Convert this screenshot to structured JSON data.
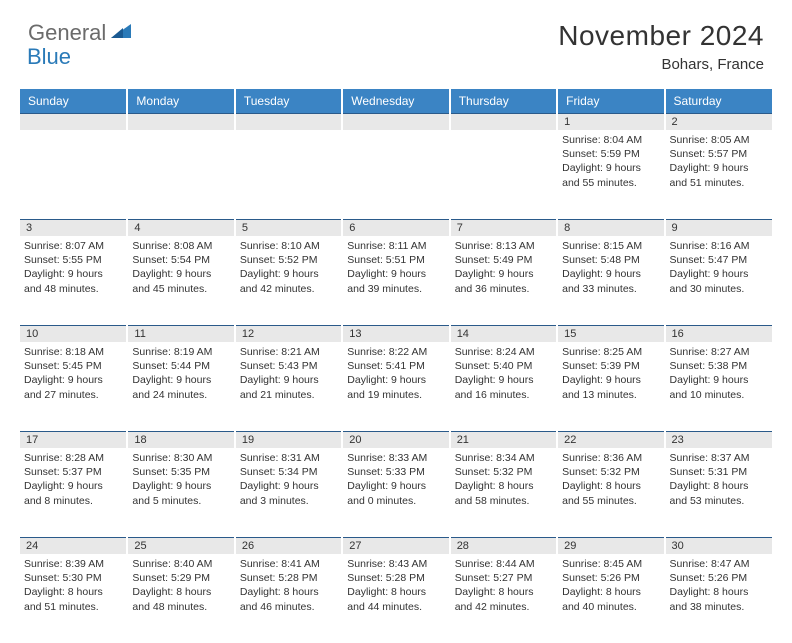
{
  "logo": {
    "text1": "General",
    "text2": "Blue"
  },
  "title": "November 2024",
  "subtitle": "Bohars, France",
  "colors": {
    "header_bg": "#3b84c4",
    "header_text": "#ffffff",
    "daynum_bg": "#e8e8e8",
    "border_top": "#2a5a8a",
    "text": "#333333",
    "logo_gray": "#6b6b6b",
    "logo_blue": "#2a7ab8"
  },
  "days_of_week": [
    "Sunday",
    "Monday",
    "Tuesday",
    "Wednesday",
    "Thursday",
    "Friday",
    "Saturday"
  ],
  "weeks": [
    [
      null,
      null,
      null,
      null,
      null,
      {
        "n": "1",
        "sunrise": "8:04 AM",
        "sunset": "5:59 PM",
        "daylight": "9 hours and 55 minutes."
      },
      {
        "n": "2",
        "sunrise": "8:05 AM",
        "sunset": "5:57 PM",
        "daylight": "9 hours and 51 minutes."
      }
    ],
    [
      {
        "n": "3",
        "sunrise": "8:07 AM",
        "sunset": "5:55 PM",
        "daylight": "9 hours and 48 minutes."
      },
      {
        "n": "4",
        "sunrise": "8:08 AM",
        "sunset": "5:54 PM",
        "daylight": "9 hours and 45 minutes."
      },
      {
        "n": "5",
        "sunrise": "8:10 AM",
        "sunset": "5:52 PM",
        "daylight": "9 hours and 42 minutes."
      },
      {
        "n": "6",
        "sunrise": "8:11 AM",
        "sunset": "5:51 PM",
        "daylight": "9 hours and 39 minutes."
      },
      {
        "n": "7",
        "sunrise": "8:13 AM",
        "sunset": "5:49 PM",
        "daylight": "9 hours and 36 minutes."
      },
      {
        "n": "8",
        "sunrise": "8:15 AM",
        "sunset": "5:48 PM",
        "daylight": "9 hours and 33 minutes."
      },
      {
        "n": "9",
        "sunrise": "8:16 AM",
        "sunset": "5:47 PM",
        "daylight": "9 hours and 30 minutes."
      }
    ],
    [
      {
        "n": "10",
        "sunrise": "8:18 AM",
        "sunset": "5:45 PM",
        "daylight": "9 hours and 27 minutes."
      },
      {
        "n": "11",
        "sunrise": "8:19 AM",
        "sunset": "5:44 PM",
        "daylight": "9 hours and 24 minutes."
      },
      {
        "n": "12",
        "sunrise": "8:21 AM",
        "sunset": "5:43 PM",
        "daylight": "9 hours and 21 minutes."
      },
      {
        "n": "13",
        "sunrise": "8:22 AM",
        "sunset": "5:41 PM",
        "daylight": "9 hours and 19 minutes."
      },
      {
        "n": "14",
        "sunrise": "8:24 AM",
        "sunset": "5:40 PM",
        "daylight": "9 hours and 16 minutes."
      },
      {
        "n": "15",
        "sunrise": "8:25 AM",
        "sunset": "5:39 PM",
        "daylight": "9 hours and 13 minutes."
      },
      {
        "n": "16",
        "sunrise": "8:27 AM",
        "sunset": "5:38 PM",
        "daylight": "9 hours and 10 minutes."
      }
    ],
    [
      {
        "n": "17",
        "sunrise": "8:28 AM",
        "sunset": "5:37 PM",
        "daylight": "9 hours and 8 minutes."
      },
      {
        "n": "18",
        "sunrise": "8:30 AM",
        "sunset": "5:35 PM",
        "daylight": "9 hours and 5 minutes."
      },
      {
        "n": "19",
        "sunrise": "8:31 AM",
        "sunset": "5:34 PM",
        "daylight": "9 hours and 3 minutes."
      },
      {
        "n": "20",
        "sunrise": "8:33 AM",
        "sunset": "5:33 PM",
        "daylight": "9 hours and 0 minutes."
      },
      {
        "n": "21",
        "sunrise": "8:34 AM",
        "sunset": "5:32 PM",
        "daylight": "8 hours and 58 minutes."
      },
      {
        "n": "22",
        "sunrise": "8:36 AM",
        "sunset": "5:32 PM",
        "daylight": "8 hours and 55 minutes."
      },
      {
        "n": "23",
        "sunrise": "8:37 AM",
        "sunset": "5:31 PM",
        "daylight": "8 hours and 53 minutes."
      }
    ],
    [
      {
        "n": "24",
        "sunrise": "8:39 AM",
        "sunset": "5:30 PM",
        "daylight": "8 hours and 51 minutes."
      },
      {
        "n": "25",
        "sunrise": "8:40 AM",
        "sunset": "5:29 PM",
        "daylight": "8 hours and 48 minutes."
      },
      {
        "n": "26",
        "sunrise": "8:41 AM",
        "sunset": "5:28 PM",
        "daylight": "8 hours and 46 minutes."
      },
      {
        "n": "27",
        "sunrise": "8:43 AM",
        "sunset": "5:28 PM",
        "daylight": "8 hours and 44 minutes."
      },
      {
        "n": "28",
        "sunrise": "8:44 AM",
        "sunset": "5:27 PM",
        "daylight": "8 hours and 42 minutes."
      },
      {
        "n": "29",
        "sunrise": "8:45 AM",
        "sunset": "5:26 PM",
        "daylight": "8 hours and 40 minutes."
      },
      {
        "n": "30",
        "sunrise": "8:47 AM",
        "sunset": "5:26 PM",
        "daylight": "8 hours and 38 minutes."
      }
    ]
  ],
  "labels": {
    "sunrise": "Sunrise:",
    "sunset": "Sunset:",
    "daylight": "Daylight:"
  }
}
